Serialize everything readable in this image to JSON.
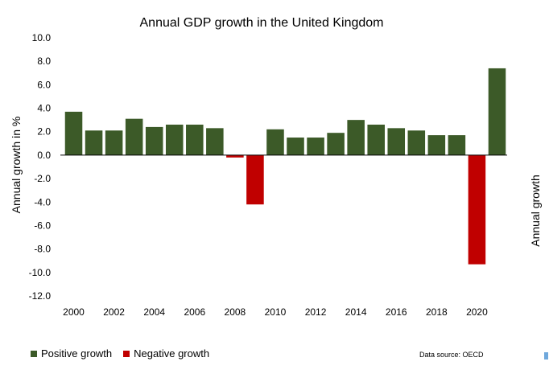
{
  "chart_data": {
    "type": "bar",
    "title": "Annual GDP growth in the United Kingdom",
    "ylabel": "Annual growth in %",
    "side_label": "Annual growth",
    "source": "Data source: OECD",
    "ylim": [
      -12,
      10
    ],
    "yticks": [
      10,
      8,
      6,
      4,
      2,
      0,
      -2,
      -4,
      -6,
      -8,
      -10,
      -12
    ],
    "ytick_labels": [
      "10.0",
      "8.0",
      "6.0",
      "4.0",
      "2.0",
      "0.0",
      "-2.0",
      "-4.0",
      "-6.0",
      "-8.0",
      "-10.0",
      "-12.0"
    ],
    "xtick_labels": [
      "2000",
      "2002",
      "2004",
      "2006",
      "2008",
      "2010",
      "2012",
      "2014",
      "2016",
      "2018",
      "2020"
    ],
    "xtick_years": [
      2000,
      2002,
      2004,
      2006,
      2008,
      2010,
      2012,
      2014,
      2016,
      2018,
      2020
    ],
    "categories": [
      2000,
      2001,
      2002,
      2003,
      2004,
      2005,
      2006,
      2007,
      2008,
      2009,
      2010,
      2011,
      2012,
      2013,
      2014,
      2015,
      2016,
      2017,
      2018,
      2019,
      2020,
      2021
    ],
    "values": [
      3.7,
      2.1,
      2.1,
      3.1,
      2.4,
      2.6,
      2.6,
      2.3,
      -0.2,
      -4.2,
      2.2,
      1.5,
      1.5,
      1.9,
      3.0,
      2.6,
      2.3,
      2.1,
      1.7,
      1.7,
      -9.3,
      7.4
    ],
    "legend": [
      {
        "label": "Positive growth",
        "color": "#3c5a28"
      },
      {
        "label": "Negative growth",
        "color": "#c00000"
      }
    ],
    "legend_placement": "bottom-left",
    "grid": false
  }
}
